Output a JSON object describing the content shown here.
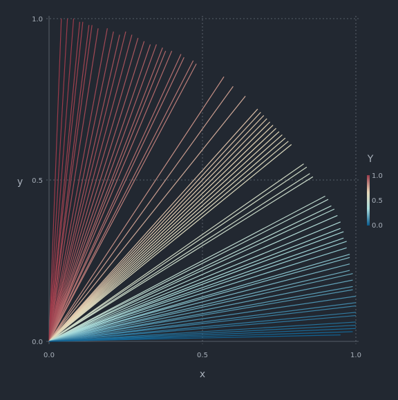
{
  "chart_data": {
    "type": "line",
    "title": "",
    "xlabel": "x",
    "ylabel": "y",
    "xlim": [
      0,
      1
    ],
    "ylim": [
      0,
      1
    ],
    "xticks": [
      "0.0",
      "0.5",
      "1.0"
    ],
    "yticks": [
      "0.0",
      "0.5",
      "1.0"
    ],
    "grid": true,
    "colorbar": {
      "title": "Y",
      "ticks": [
        "1.0",
        "0.5",
        "0.0"
      ],
      "range": [
        0,
        1
      ],
      "colors": [
        "#07598c",
        "#a8dcdc",
        "#e6d7b7",
        "#9c3b4b"
      ]
    },
    "description_of_marks": "rays from origin (0,0), each colored by its endpoint y value",
    "rays": [
      [
        0.04,
        1.0
      ],
      [
        0.06,
        1.0
      ],
      [
        0.08,
        1.0
      ],
      [
        0.1,
        0.99
      ],
      [
        0.11,
        0.99
      ],
      [
        0.13,
        0.98
      ],
      [
        0.14,
        0.98
      ],
      [
        0.16,
        0.97
      ],
      [
        0.19,
        0.97
      ],
      [
        0.21,
        0.96
      ],
      [
        0.23,
        0.95
      ],
      [
        0.25,
        0.96
      ],
      [
        0.27,
        0.95
      ],
      [
        0.29,
        0.94
      ],
      [
        0.31,
        0.93
      ],
      [
        0.33,
        0.92
      ],
      [
        0.35,
        0.92
      ],
      [
        0.37,
        0.91
      ],
      [
        0.38,
        0.9
      ],
      [
        0.4,
        0.9
      ],
      [
        0.43,
        0.89
      ],
      [
        0.44,
        0.88
      ],
      [
        0.47,
        0.87
      ],
      [
        0.48,
        0.86
      ],
      [
        0.57,
        0.82
      ],
      [
        0.6,
        0.79
      ],
      [
        0.64,
        0.76
      ],
      [
        0.68,
        0.72
      ],
      [
        0.69,
        0.71
      ],
      [
        0.7,
        0.7
      ],
      [
        0.71,
        0.69
      ],
      [
        0.72,
        0.68
      ],
      [
        0.73,
        0.67
      ],
      [
        0.74,
        0.66
      ],
      [
        0.75,
        0.65
      ],
      [
        0.76,
        0.64
      ],
      [
        0.77,
        0.63
      ],
      [
        0.78,
        0.62
      ],
      [
        0.79,
        0.61
      ],
      [
        0.83,
        0.55
      ],
      [
        0.84,
        0.54
      ],
      [
        0.85,
        0.52
      ],
      [
        0.86,
        0.51
      ],
      [
        0.9,
        0.45
      ],
      [
        0.91,
        0.44
      ],
      [
        0.92,
        0.42
      ],
      [
        0.93,
        0.41
      ],
      [
        0.94,
        0.39
      ],
      [
        0.95,
        0.37
      ],
      [
        0.95,
        0.35
      ],
      [
        0.96,
        0.34
      ],
      [
        0.96,
        0.32
      ],
      [
        0.97,
        0.31
      ],
      [
        0.97,
        0.29
      ],
      [
        0.98,
        0.27
      ],
      [
        0.98,
        0.26
      ],
      [
        0.98,
        0.24
      ],
      [
        0.98,
        0.22
      ],
      [
        0.99,
        0.21
      ],
      [
        0.99,
        0.19
      ],
      [
        0.99,
        0.17
      ],
      [
        0.99,
        0.16
      ],
      [
        1.0,
        0.14
      ],
      [
        1.0,
        0.12
      ],
      [
        1.0,
        0.11
      ],
      [
        1.0,
        0.09
      ],
      [
        1.0,
        0.08
      ],
      [
        1.0,
        0.06
      ],
      [
        1.0,
        0.05
      ],
      [
        1.0,
        0.04
      ],
      [
        0.99,
        0.03
      ],
      [
        0.95,
        0.02
      ]
    ]
  }
}
